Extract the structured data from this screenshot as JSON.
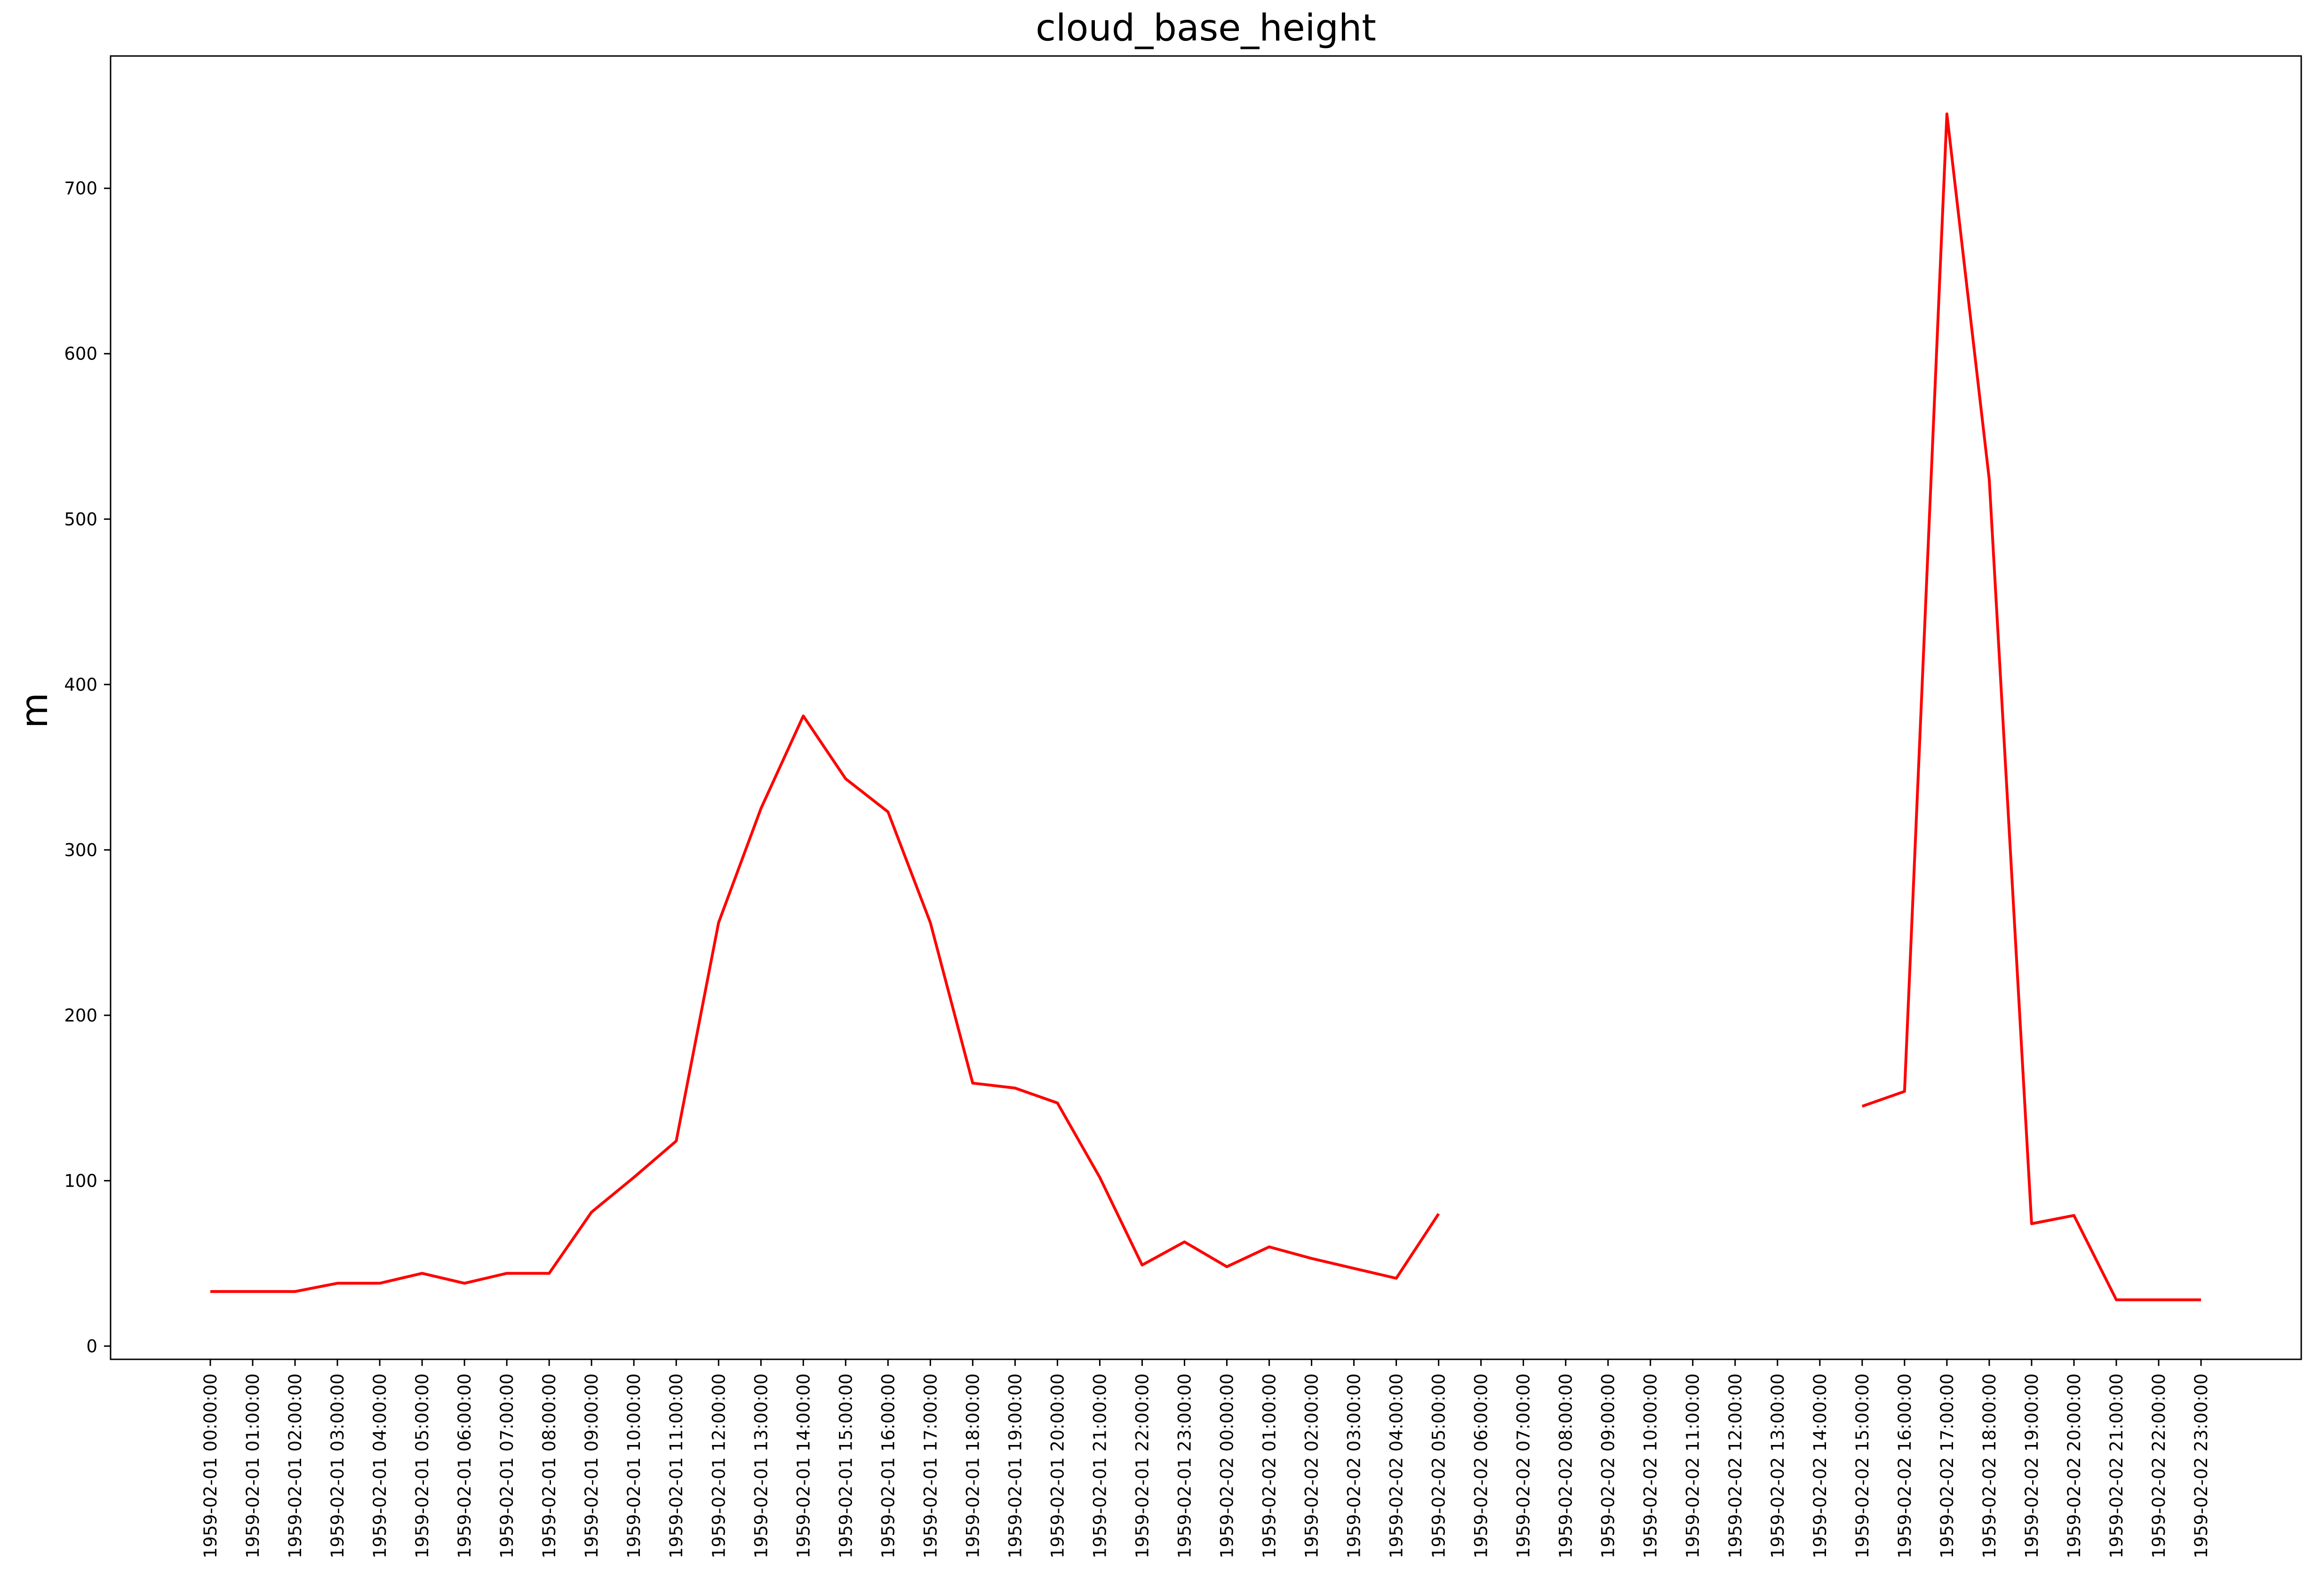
{
  "chart_data": {
    "type": "line",
    "title": "cloud_base_height",
    "xlabel": "",
    "ylabel": "m",
    "ylim": [
      -8,
      780
    ],
    "yticks": [
      0,
      100,
      200,
      300,
      400,
      500,
      600,
      700
    ],
    "grid": false,
    "line_color": "#ff0000",
    "x": [
      "1959-02-01 00:00:00",
      "1959-02-01 01:00:00",
      "1959-02-01 02:00:00",
      "1959-02-01 03:00:00",
      "1959-02-01 04:00:00",
      "1959-02-01 05:00:00",
      "1959-02-01 06:00:00",
      "1959-02-01 07:00:00",
      "1959-02-01 08:00:00",
      "1959-02-01 09:00:00",
      "1959-02-01 10:00:00",
      "1959-02-01 11:00:00",
      "1959-02-01 12:00:00",
      "1959-02-01 13:00:00",
      "1959-02-01 14:00:00",
      "1959-02-01 15:00:00",
      "1959-02-01 16:00:00",
      "1959-02-01 17:00:00",
      "1959-02-01 18:00:00",
      "1959-02-01 19:00:00",
      "1959-02-01 20:00:00",
      "1959-02-01 21:00:00",
      "1959-02-01 22:00:00",
      "1959-02-01 23:00:00",
      "1959-02-02 00:00:00",
      "1959-02-02 01:00:00",
      "1959-02-02 02:00:00",
      "1959-02-02 03:00:00",
      "1959-02-02 04:00:00",
      "1959-02-02 05:00:00",
      "1959-02-02 06:00:00",
      "1959-02-02 07:00:00",
      "1959-02-02 08:00:00",
      "1959-02-02 09:00:00",
      "1959-02-02 10:00:00",
      "1959-02-02 11:00:00",
      "1959-02-02 12:00:00",
      "1959-02-02 13:00:00",
      "1959-02-02 14:00:00",
      "1959-02-02 15:00:00",
      "1959-02-02 16:00:00",
      "1959-02-02 17:00:00",
      "1959-02-02 18:00:00",
      "1959-02-02 19:00:00",
      "1959-02-02 20:00:00",
      "1959-02-02 21:00:00",
      "1959-02-02 22:00:00",
      "1959-02-02 23:00:00"
    ],
    "series": [
      {
        "values": [
          33,
          33,
          33,
          38,
          38,
          44,
          38,
          44,
          44,
          81,
          102,
          124,
          256,
          325,
          381,
          343,
          323,
          256,
          159,
          156,
          147,
          102,
          49,
          63,
          48,
          60,
          53,
          47,
          41,
          80,
          null,
          null,
          null,
          null,
          null,
          null,
          null,
          null,
          null,
          145,
          154,
          745,
          524,
          74,
          79,
          28,
          28,
          28
        ]
      }
    ]
  }
}
